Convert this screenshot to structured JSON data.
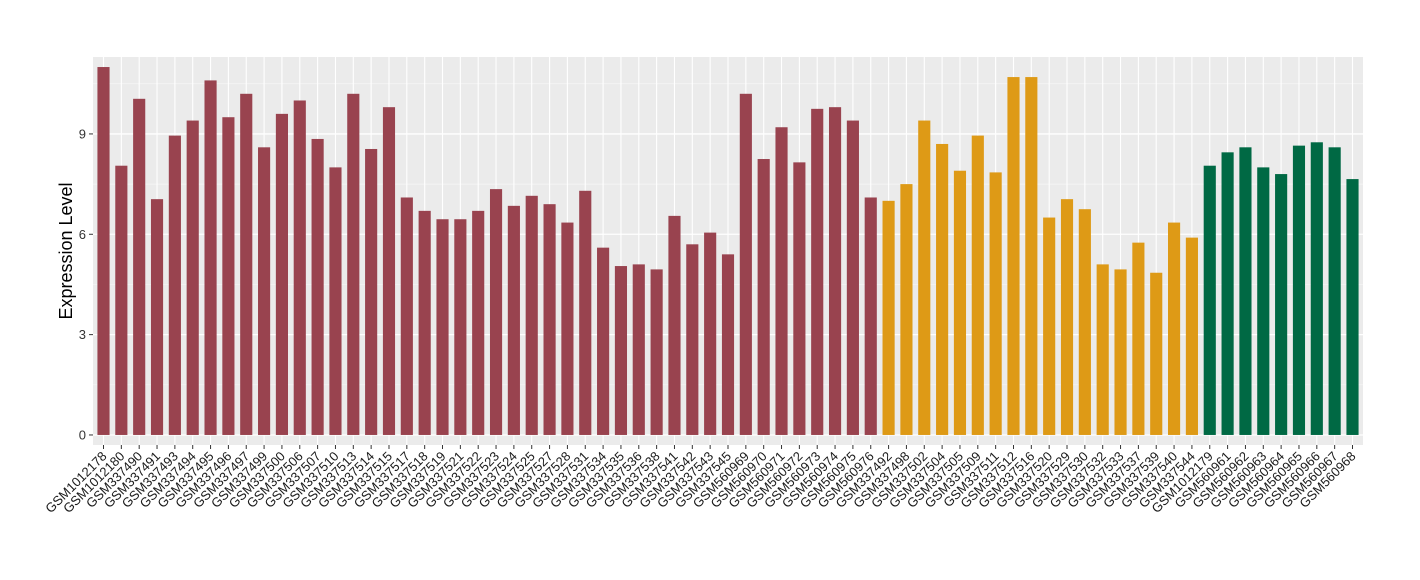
{
  "chart_data": {
    "type": "bar",
    "title": "",
    "xlabel": "",
    "ylabel": "Expression Level",
    "ylim": [
      -0.3,
      11.3
    ],
    "yticks": [
      0,
      3,
      6,
      9
    ],
    "grid": true,
    "legend": "none",
    "background": "#ebebeb",
    "categories": [
      "GSM1012178",
      "GSM1012180",
      "GSM337490",
      "GSM337491",
      "GSM337493",
      "GSM337494",
      "GSM337495",
      "GSM337496",
      "GSM337497",
      "GSM337499",
      "GSM337500",
      "GSM337506",
      "GSM337507",
      "GSM337510",
      "GSM337513",
      "GSM337514",
      "GSM337515",
      "GSM337517",
      "GSM337518",
      "GSM337519",
      "GSM337521",
      "GSM337522",
      "GSM337523",
      "GSM337524",
      "GSM337525",
      "GSM337527",
      "GSM337528",
      "GSM337531",
      "GSM337534",
      "GSM337535",
      "GSM337536",
      "GSM337538",
      "GSM337541",
      "GSM337542",
      "GSM337543",
      "GSM337545",
      "GSM560969",
      "GSM560970",
      "GSM560971",
      "GSM560972",
      "GSM560973",
      "GSM560974",
      "GSM560975",
      "GSM560976",
      "GSM337492",
      "GSM337498",
      "GSM337502",
      "GSM337504",
      "GSM337505",
      "GSM337509",
      "GSM337511",
      "GSM337512",
      "GSM337516",
      "GSM337520",
      "GSM337529",
      "GSM337530",
      "GSM337532",
      "GSM337533",
      "GSM337537",
      "GSM337539",
      "GSM337540",
      "GSM337544",
      "GSM1012179",
      "GSM560961",
      "GSM560962",
      "GSM560963",
      "GSM560964",
      "GSM560965",
      "GSM560966",
      "GSM560967",
      "GSM560968"
    ],
    "values": [
      11.0,
      8.05,
      10.05,
      7.05,
      8.95,
      9.4,
      10.6,
      9.5,
      10.2,
      8.6,
      9.6,
      10.0,
      8.85,
      8.0,
      10.2,
      8.55,
      9.8,
      7.1,
      6.7,
      6.45,
      6.45,
      6.7,
      7.35,
      6.85,
      7.15,
      6.9,
      6.35,
      7.3,
      5.6,
      5.05,
      5.1,
      4.95,
      6.55,
      5.7,
      6.05,
      5.4,
      10.2,
      8.25,
      9.2,
      8.15,
      9.75,
      9.8,
      9.4,
      7.1,
      7.0,
      7.5,
      9.4,
      8.7,
      7.9,
      8.95,
      7.85,
      10.7,
      10.7,
      6.5,
      7.05,
      6.75,
      5.1,
      4.95,
      5.75,
      4.85,
      6.35,
      5.9,
      8.05,
      8.45,
      8.6,
      8.0,
      7.8,
      8.65,
      8.75,
      8.6,
      7.65
    ],
    "groups": [
      {
        "count": 44,
        "color": "#99434f"
      },
      {
        "count": 18,
        "color": "#de9a16"
      },
      {
        "count": 9,
        "color": "#006944"
      }
    ]
  }
}
